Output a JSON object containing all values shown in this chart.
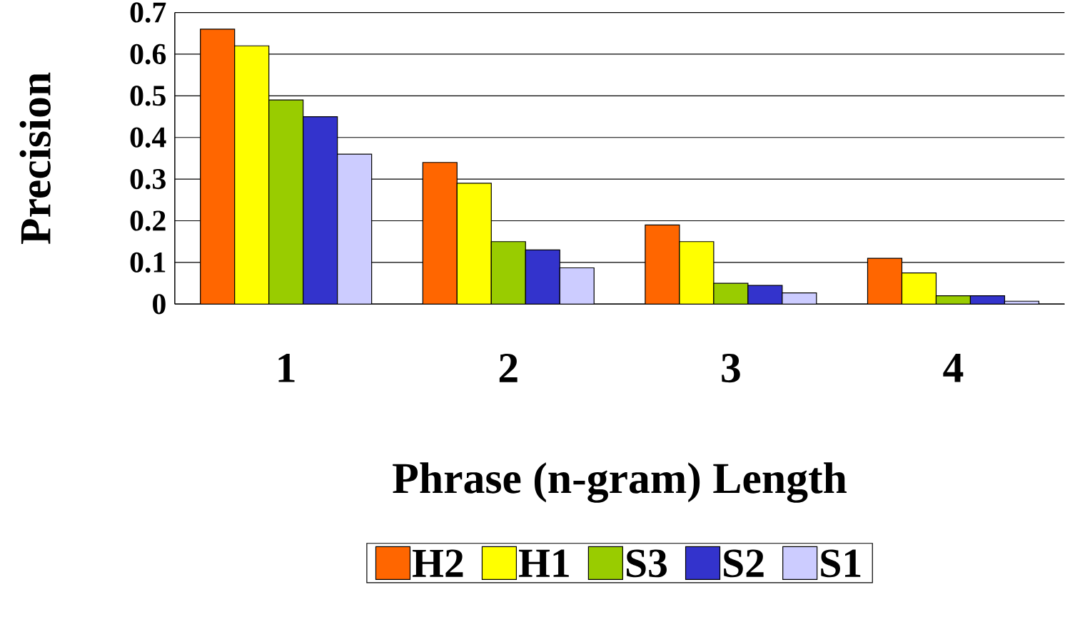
{
  "chart_data": {
    "type": "bar",
    "xlabel": "Phrase (n-gram) Length",
    "ylabel": "Precision",
    "categories": [
      "1",
      "2",
      "3",
      "4"
    ],
    "series": [
      {
        "name": "H2",
        "color": "#ff6600",
        "values": [
          0.66,
          0.34,
          0.19,
          0.11
        ]
      },
      {
        "name": "H1",
        "color": "#ffff00",
        "values": [
          0.62,
          0.29,
          0.15,
          0.075
        ]
      },
      {
        "name": "S3",
        "color": "#99cc00",
        "values": [
          0.49,
          0.15,
          0.05,
          0.02
        ]
      },
      {
        "name": "S2",
        "color": "#3333cc",
        "values": [
          0.45,
          0.13,
          0.045,
          0.02
        ]
      },
      {
        "name": "S1",
        "color": "#ccccff",
        "values": [
          0.36,
          0.087,
          0.027,
          0.007
        ]
      }
    ],
    "ylim": [
      0,
      0.7
    ],
    "yticks": [
      0,
      0.1,
      0.2,
      0.3,
      0.4,
      0.5,
      0.6,
      0.7
    ],
    "grid": "y",
    "legend": "bottom"
  }
}
